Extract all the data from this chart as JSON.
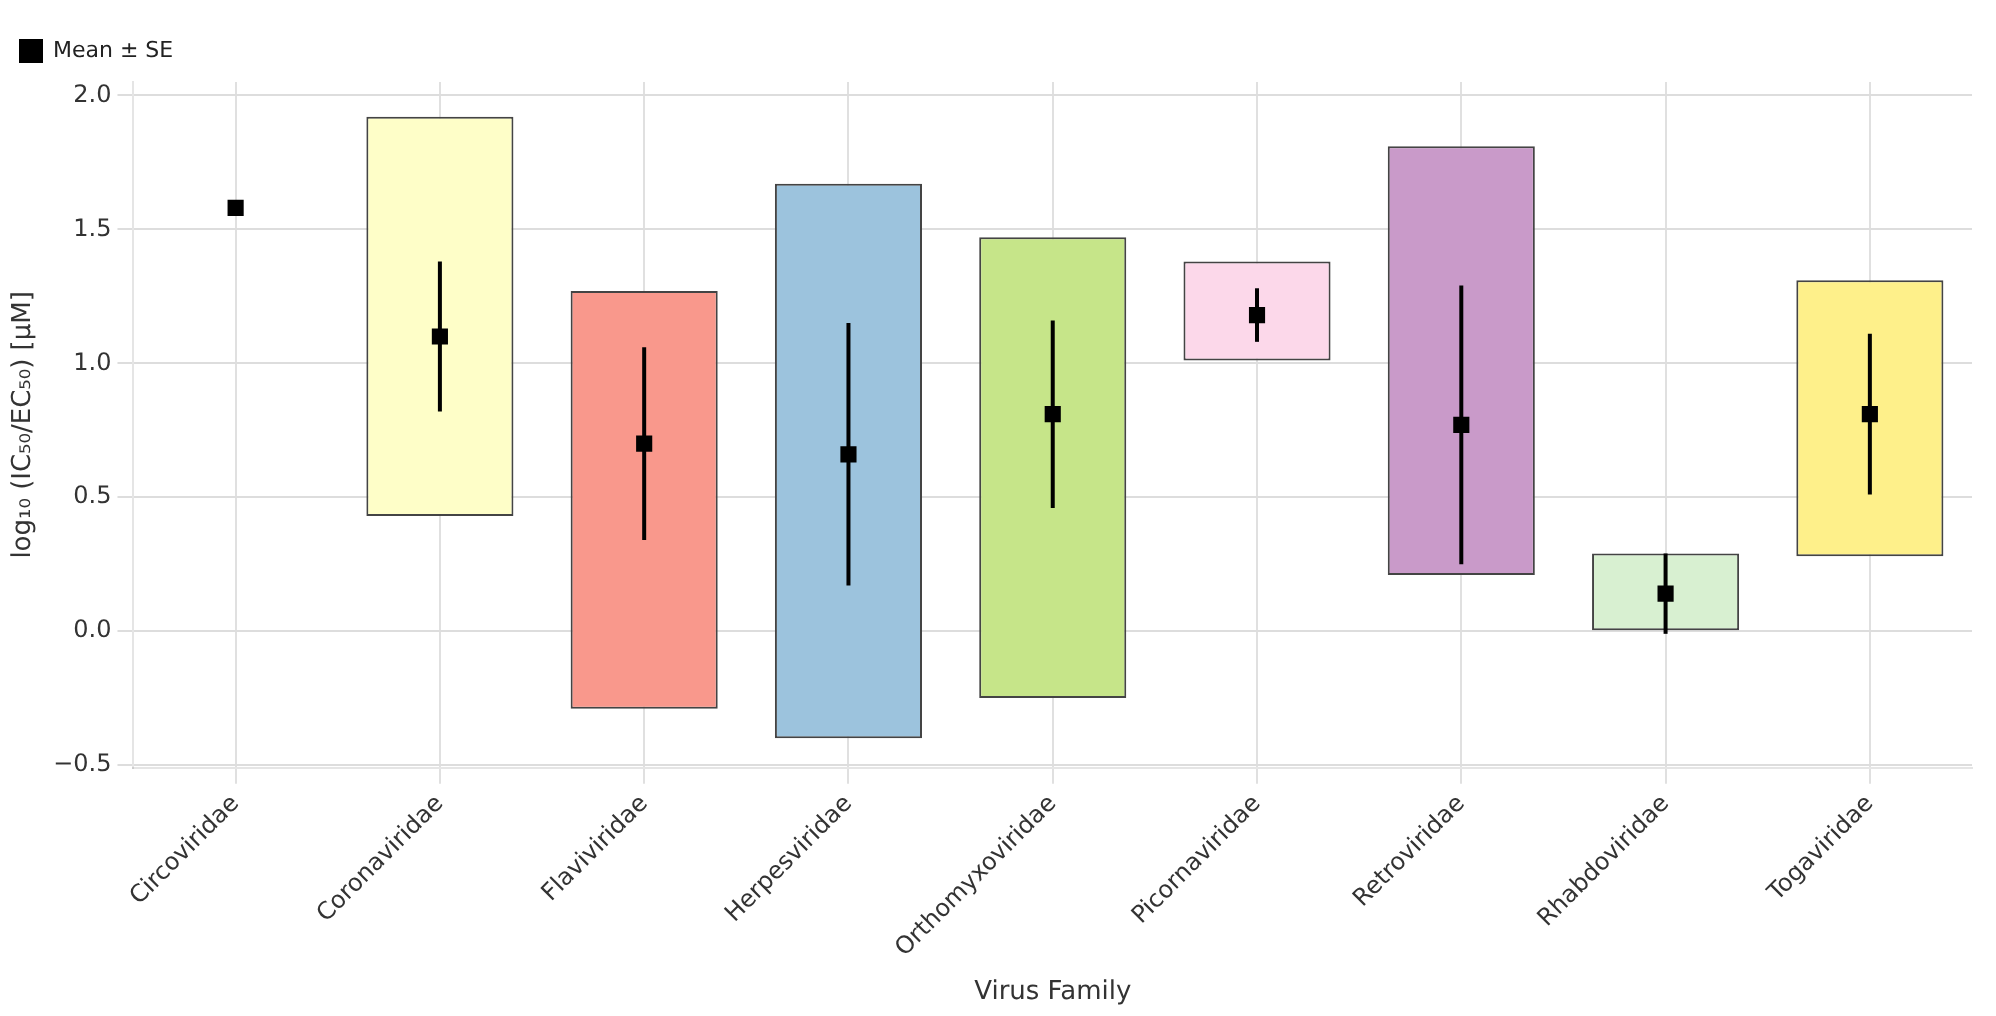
{
  "chart_data": {
    "type": "bar",
    "xlabel": "Virus Family",
    "ylabel": "log₁₀ (IC₅₀/EC₅₀) [μM]",
    "categories": [
      "Circoviridae",
      "Coronaviridae",
      "Flaviviridae",
      "Herpesviridae",
      "Orthomyxoviridae",
      "Picornaviridae",
      "Retroviridae",
      "Rhabdoviridae",
      "Togaviridae"
    ],
    "series": [
      {
        "colors": [
          "#8dd3c7",
          "#fefec8",
          "#f9988c",
          "#9cc3dd",
          "#c6e589",
          "#fcd8ea",
          "#c99ac9",
          "#d8f0d1",
          "#fef08a"
        ],
        "base": [
          null,
          0.43,
          -0.29,
          -0.4,
          -0.25,
          1.01,
          0.21,
          0.0,
          0.28
        ],
        "values": [
          null,
          1.49,
          1.56,
          2.07,
          1.72,
          0.37,
          1.6,
          0.29,
          1.03
        ]
      },
      {
        "type": "scatter",
        "name": "Mean ± SE",
        "color": "#000000",
        "marker": "square",
        "x": [
          "Circoviridae",
          "Coronaviridae",
          "Flaviviridae",
          "Herpesviridae",
          "Orthomyxoviridae",
          "Picornaviridae",
          "Retroviridae",
          "Rhabdoviridae",
          "Togaviridae"
        ],
        "values": [
          1.58,
          1.1,
          0.7,
          0.66,
          0.81,
          1.18,
          0.77,
          0.14,
          0.81
        ],
        "errors": [
          null,
          0.28,
          0.36,
          0.49,
          0.35,
          0.1,
          0.52,
          0.15,
          0.3
        ]
      }
    ],
    "ylim": [
      -0.51,
      2.05
    ],
    "yticks": [
      {
        "value": -0.5,
        "label": "−0.5"
      },
      {
        "value": 0,
        "label": "0.0"
      },
      {
        "value": 0.5,
        "label": "0.5"
      },
      {
        "value": 1,
        "label": "1.0"
      },
      {
        "value": 1.5,
        "label": "1.5"
      },
      {
        "value": 2,
        "label": "2.0"
      }
    ],
    "grid": true,
    "legend": "top left"
  }
}
